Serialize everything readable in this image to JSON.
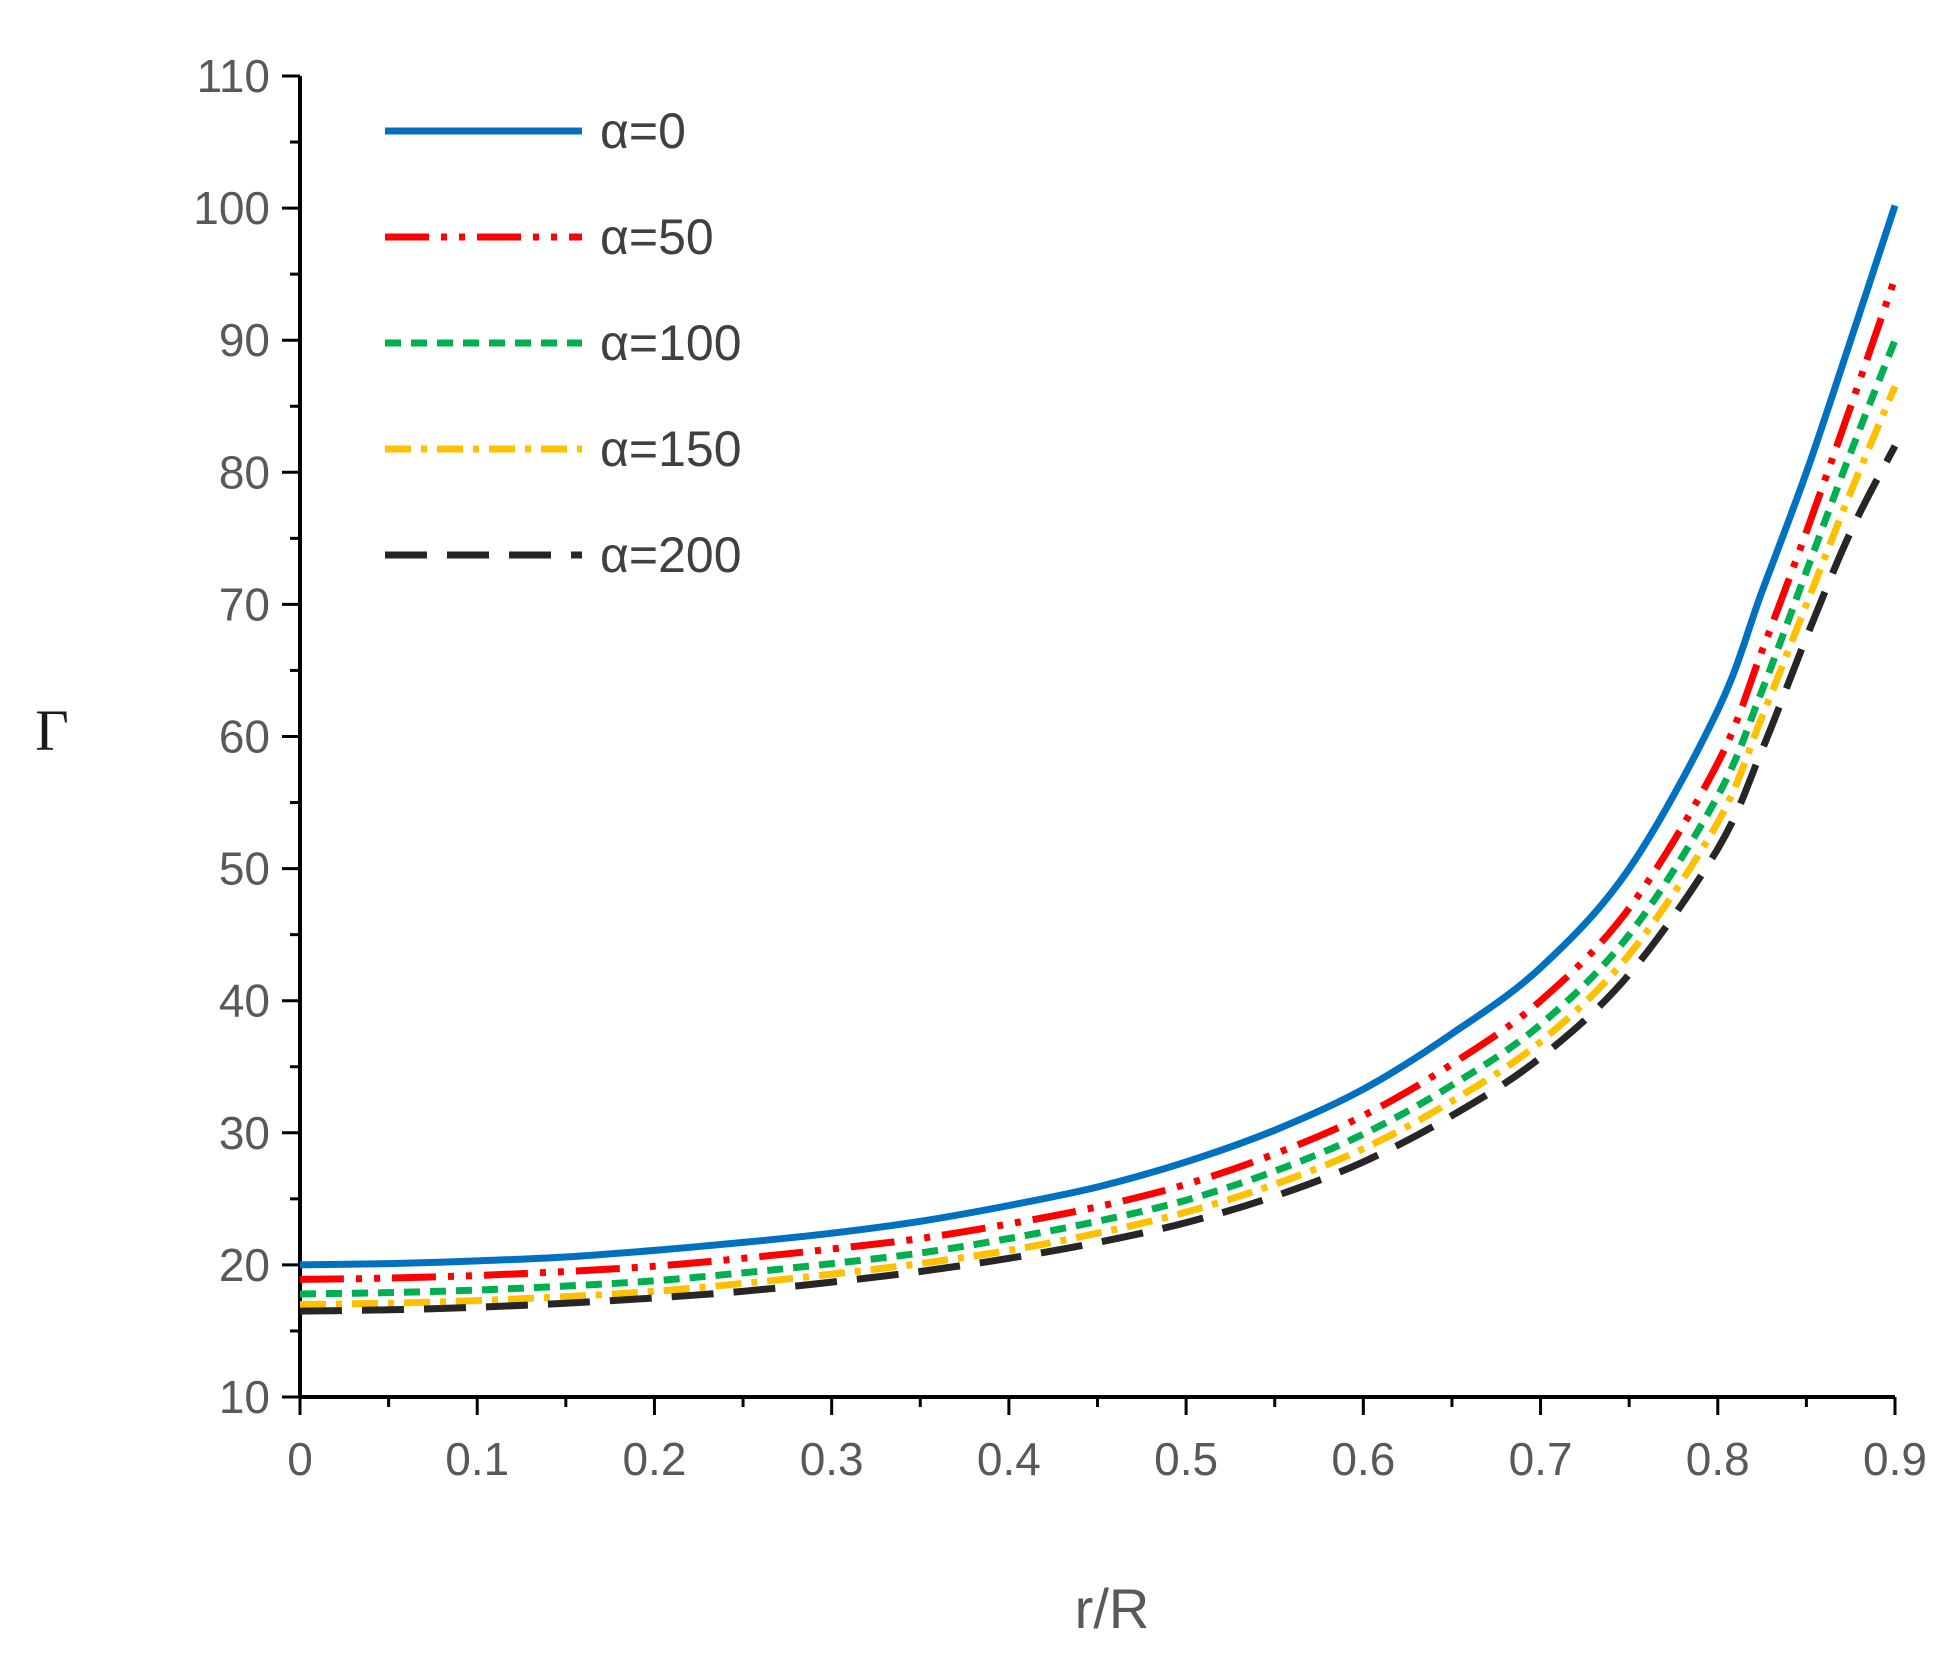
{
  "chart_data": {
    "type": "line",
    "xlabel": "r/R",
    "ylabel": "Γ",
    "xlim": [
      0,
      0.9
    ],
    "ylim": [
      10,
      110
    ],
    "x_ticks": [
      "0",
      "0.1",
      "0.2",
      "0.3",
      "0.4",
      "0.5",
      "0.6",
      "0.7",
      "0.8",
      "0.9"
    ],
    "y_ticks": [
      "10",
      "20",
      "30",
      "40",
      "50",
      "60",
      "70",
      "80",
      "90",
      "100",
      "110"
    ],
    "grid": false,
    "legend_position": "top-left",
    "x": [
      0,
      0.05,
      0.1,
      0.15,
      0.2,
      0.25,
      0.3,
      0.35,
      0.4,
      0.45,
      0.5,
      0.55,
      0.6,
      0.65,
      0.7,
      0.75,
      0.8,
      0.825,
      0.85,
      0.875,
      0.9
    ],
    "series": [
      {
        "name": "α=0",
        "color": "#0070C0",
        "dash": "solid",
        "values": [
          20.0,
          20.1,
          20.3,
          20.6,
          21.1,
          21.7,
          22.4,
          23.3,
          24.5,
          25.9,
          27.8,
          30.2,
          33.3,
          37.5,
          42.5,
          50.0,
          62.0,
          71.0,
          80.0,
          90.0,
          100.2
        ]
      },
      {
        "name": "α=50",
        "color": "#FF0000",
        "dash": "dash-dot-dot",
        "values": [
          18.9,
          19.0,
          19.2,
          19.5,
          19.9,
          20.5,
          21.2,
          22.0,
          23.1,
          24.4,
          26.1,
          28.4,
          31.3,
          35.2,
          40.0,
          47.0,
          58.0,
          66.5,
          75.5,
          85.0,
          94.7
        ]
      },
      {
        "name": "α=100",
        "color": "#00B050",
        "dash": "short-dash",
        "values": [
          17.8,
          17.9,
          18.1,
          18.4,
          18.8,
          19.4,
          20.1,
          20.9,
          22.0,
          23.3,
          24.9,
          27.1,
          29.9,
          33.6,
          38.2,
          45.0,
          55.5,
          63.5,
          72.5,
          81.5,
          90.0
        ]
      },
      {
        "name": "α=150",
        "color": "#FFC000",
        "dash": "dash-dot",
        "values": [
          17.0,
          17.1,
          17.3,
          17.6,
          18.0,
          18.6,
          19.3,
          20.1,
          21.1,
          22.4,
          24.0,
          26.1,
          28.8,
          32.4,
          36.9,
          43.5,
          53.5,
          61.5,
          70.0,
          78.5,
          86.5
        ]
      },
      {
        "name": "α=200",
        "color": "#262626",
        "dash": "long-dash",
        "values": [
          16.5,
          16.6,
          16.8,
          17.1,
          17.5,
          18.0,
          18.7,
          19.5,
          20.5,
          21.7,
          23.2,
          25.2,
          27.8,
          31.3,
          35.7,
          42.0,
          51.5,
          59.0,
          67.5,
          75.5,
          82.0
        ]
      }
    ]
  }
}
